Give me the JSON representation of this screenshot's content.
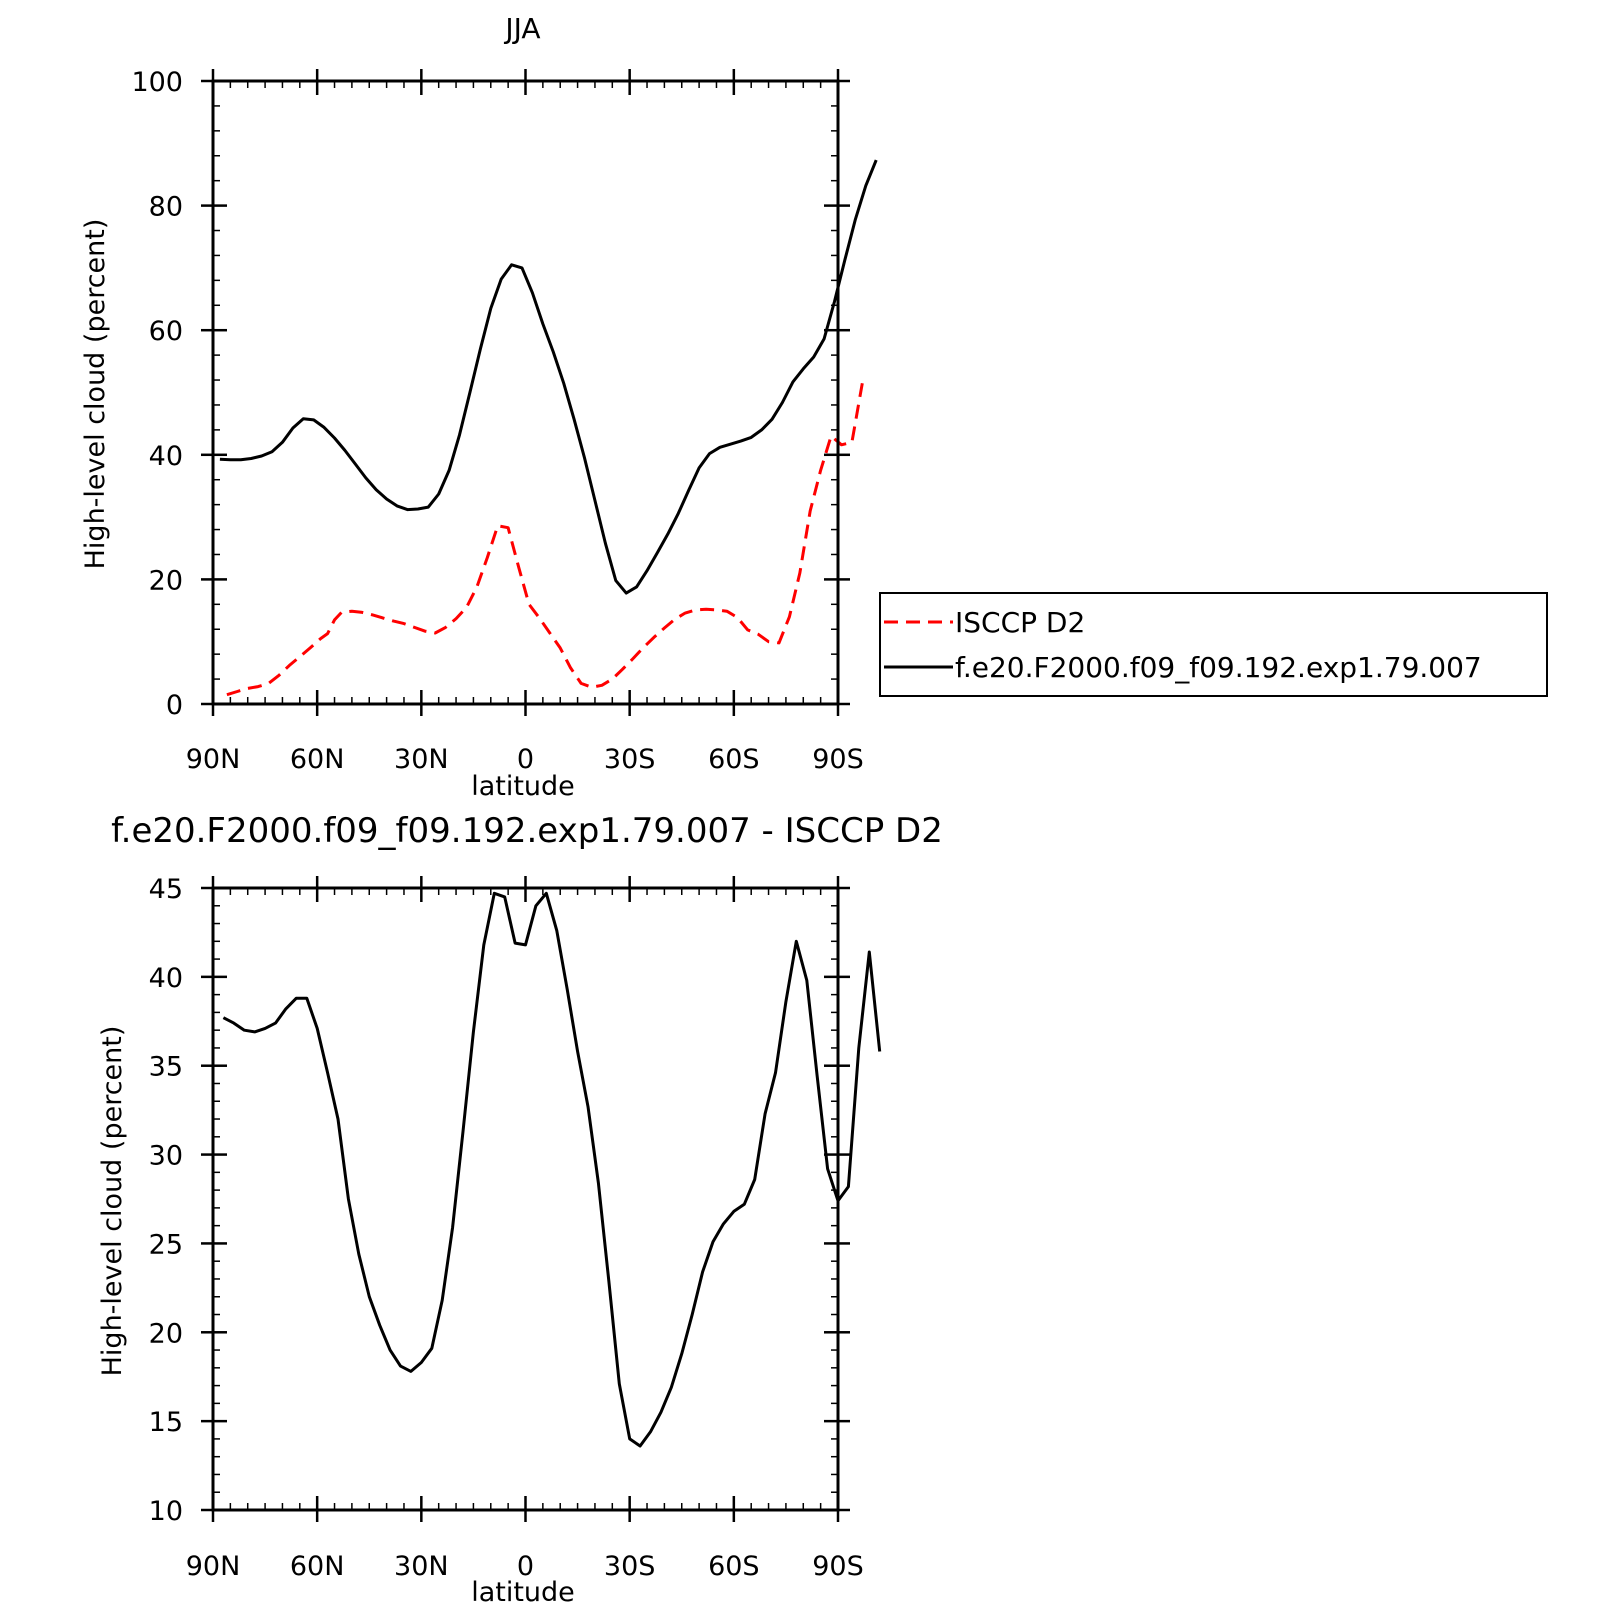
{
  "chart_data": [
    {
      "type": "line",
      "title": "JJA",
      "xlabel": "latitude",
      "ylabel": "High-level cloud (percent)",
      "xlim": [
        90,
        -90
      ],
      "ylim": [
        0,
        100
      ],
      "x_ticks": [
        90,
        60,
        30,
        0,
        -30,
        -60,
        -90
      ],
      "x_tick_labels": [
        "90N",
        "60N",
        "30N",
        "0",
        "30S",
        "60S",
        "90S"
      ],
      "y_ticks": [
        0,
        20,
        40,
        60,
        80,
        100
      ],
      "y_tick_labels": [
        "0",
        "20",
        "40",
        "60",
        "80",
        "100"
      ],
      "legend_placement": "right",
      "series": [
        {
          "name": "ISCCP D2",
          "color": "#ff0000",
          "style": "dashed",
          "points": [
            [
              86,
              1.5
            ],
            [
              83,
              2
            ],
            [
              80,
              2.5
            ],
            [
              77,
              2.8
            ],
            [
              74,
              3.3
            ],
            [
              71,
              4.6
            ],
            [
              68,
              6.2
            ],
            [
              65,
              7.6
            ],
            [
              62,
              9
            ],
            [
              59,
              10.5
            ],
            [
              57,
              11.3
            ],
            [
              55,
              13.5
            ],
            [
              53,
              14.7
            ],
            [
              50,
              14.9
            ],
            [
              47,
              14.7
            ],
            [
              44,
              14.3
            ],
            [
              41,
              13.8
            ],
            [
              38,
              13.3
            ],
            [
              35,
              12.9
            ],
            [
              32,
              12.3
            ],
            [
              29,
              11.7
            ],
            [
              26,
              11.4
            ],
            [
              23,
              12.3
            ],
            [
              20,
              13.7
            ],
            [
              17,
              15.5
            ],
            [
              14,
              18.8
            ],
            [
              11,
              23.5
            ],
            [
              8,
              28.6
            ],
            [
              5,
              28.3
            ],
            [
              2,
              22
            ],
            [
              -1,
              16
            ],
            [
              -4,
              13.8
            ],
            [
              -7,
              11.4
            ],
            [
              -10,
              9
            ],
            [
              -13,
              5.8
            ],
            [
              -16,
              3.3
            ],
            [
              -19,
              2.7
            ],
            [
              -22,
              3
            ],
            [
              -25,
              4
            ],
            [
              -28,
              5.6
            ],
            [
              -31,
              7.3
            ],
            [
              -34,
              9.1
            ],
            [
              -37,
              10.7
            ],
            [
              -40,
              12.2
            ],
            [
              -43,
              13.6
            ],
            [
              -46,
              14.6
            ],
            [
              -49,
              15.1
            ],
            [
              -52,
              15.2
            ],
            [
              -55,
              15.1
            ],
            [
              -58,
              14.9
            ],
            [
              -61,
              13.9
            ],
            [
              -64,
              11.9
            ],
            [
              -67,
              11.2
            ],
            [
              -70,
              10
            ],
            [
              -73,
              9.8
            ],
            [
              -76,
              14
            ],
            [
              -79,
              21
            ],
            [
              -82,
              31
            ],
            [
              -85,
              37.5
            ],
            [
              -88,
              43
            ],
            [
              -91,
              41.6
            ],
            [
              -94,
              42
            ],
            [
              -97,
              51.5
            ]
          ]
        },
        {
          "name": "f.e20.F2000.f09_f09.192.exp1.79.007",
          "color": "#000000",
          "style": "solid",
          "points": [
            [
              88,
              39.3
            ],
            [
              85,
              39.2
            ],
            [
              82,
              39.2
            ],
            [
              79,
              39.4
            ],
            [
              76,
              39.8
            ],
            [
              73,
              40.5
            ],
            [
              70,
              42
            ],
            [
              67,
              44.3
            ],
            [
              64,
              45.8
            ],
            [
              61,
              45.6
            ],
            [
              58,
              44.4
            ],
            [
              55,
              42.7
            ],
            [
              52,
              40.7
            ],
            [
              49,
              38.5
            ],
            [
              46,
              36.3
            ],
            [
              43,
              34.4
            ],
            [
              40,
              32.9
            ],
            [
              37,
              31.8
            ],
            [
              34,
              31.2
            ],
            [
              31,
              31.3
            ],
            [
              28,
              31.6
            ],
            [
              25,
              33.7
            ],
            [
              22,
              37.5
            ],
            [
              19,
              43.2
            ],
            [
              16,
              50
            ],
            [
              13,
              57
            ],
            [
              10,
              63.5
            ],
            [
              7,
              68.2
            ],
            [
              4,
              70.5
            ],
            [
              1,
              70
            ],
            [
              -2,
              66
            ],
            [
              -5,
              61
            ],
            [
              -8,
              56.5
            ],
            [
              -11,
              51.5
            ],
            [
              -14,
              45.7
            ],
            [
              -17,
              39.5
            ],
            [
              -20,
              32.7
            ],
            [
              -23,
              25.8
            ],
            [
              -26,
              19.8
            ],
            [
              -29,
              17.8
            ],
            [
              -32,
              18.8
            ],
            [
              -35,
              21.4
            ],
            [
              -38,
              24.3
            ],
            [
              -41,
              27.3
            ],
            [
              -44,
              30.6
            ],
            [
              -47,
              34.3
            ],
            [
              -50,
              37.9
            ],
            [
              -53,
              40.2
            ],
            [
              -56,
              41.2
            ],
            [
              -59,
              41.7
            ],
            [
              -62,
              42.2
            ],
            [
              -65,
              42.8
            ],
            [
              -68,
              44
            ],
            [
              -71,
              45.7
            ],
            [
              -74,
              48.4
            ],
            [
              -77,
              51.7
            ],
            [
              -80,
              53.8
            ],
            [
              -83,
              55.7
            ],
            [
              -86,
              58.6
            ],
            [
              -89,
              64.6
            ],
            [
              -92,
              71.3
            ],
            [
              -95,
              77.8
            ],
            [
              -98,
              83.2
            ],
            [
              -101,
              87.3
            ]
          ]
        }
      ]
    },
    {
      "type": "line",
      "title": "f.e20.F2000.f09_f09.192.exp1.79.007 - ISCCP D2",
      "xlabel": "latitude",
      "ylabel": "High-level cloud (percent)",
      "xlim": [
        90,
        -90
      ],
      "ylim": [
        10,
        45
      ],
      "x_ticks": [
        90,
        60,
        30,
        0,
        -30,
        -60,
        -90
      ],
      "x_tick_labels": [
        "90N",
        "60N",
        "30N",
        "0",
        "30S",
        "60S",
        "90S"
      ],
      "y_ticks": [
        10,
        15,
        20,
        25,
        30,
        35,
        40,
        45
      ],
      "y_tick_labels": [
        "10",
        "15",
        "20",
        "25",
        "30",
        "35",
        "40",
        "45"
      ],
      "series": [
        {
          "color": "#000000",
          "style": "solid",
          "points": [
            [
              87,
              37.7
            ],
            [
              84,
              37.4
            ],
            [
              81,
              37
            ],
            [
              78,
              36.9
            ],
            [
              75,
              37.1
            ],
            [
              72,
              37.4
            ],
            [
              69,
              38.2
            ],
            [
              66,
              38.8
            ],
            [
              63,
              38.8
            ],
            [
              60,
              37.1
            ],
            [
              57,
              34.6
            ],
            [
              54,
              32
            ],
            [
              51,
              27.5
            ],
            [
              48,
              24.4
            ],
            [
              45,
              22
            ],
            [
              42,
              20.4
            ],
            [
              39,
              19
            ],
            [
              36,
              18.1
            ],
            [
              33,
              17.8
            ],
            [
              30,
              18.3
            ],
            [
              27,
              19.1
            ],
            [
              24,
              21.8
            ],
            [
              21,
              25.9
            ],
            [
              18,
              31.3
            ],
            [
              15,
              36.9
            ],
            [
              12,
              41.8
            ],
            [
              9,
              44.7
            ],
            [
              6,
              44.5
            ],
            [
              3,
              41.9
            ],
            [
              0,
              41.8
            ],
            [
              -3,
              44
            ],
            [
              -6,
              44.7
            ],
            [
              -9,
              42.6
            ],
            [
              -12,
              39.3
            ],
            [
              -15,
              35.8
            ],
            [
              -18,
              32.7
            ],
            [
              -21,
              28.4
            ],
            [
              -24,
              22.9
            ],
            [
              -27,
              17.1
            ],
            [
              -30,
              14
            ],
            [
              -33,
              13.6
            ],
            [
              -36,
              14.4
            ],
            [
              -39,
              15.5
            ],
            [
              -42,
              16.9
            ],
            [
              -45,
              18.8
            ],
            [
              -48,
              21
            ],
            [
              -51,
              23.4
            ],
            [
              -54,
              25.1
            ],
            [
              -57,
              26.1
            ],
            [
              -60,
              26.8
            ],
            [
              -63,
              27.2
            ],
            [
              -66,
              28.6
            ],
            [
              -69,
              32.3
            ],
            [
              -72,
              34.6
            ],
            [
              -75,
              38.6
            ],
            [
              -78,
              42
            ],
            [
              -81,
              39.8
            ],
            [
              -84,
              34.4
            ],
            [
              -87,
              29.2
            ],
            [
              -90,
              27.4
            ],
            [
              -93,
              28.2
            ],
            [
              -96,
              36
            ],
            [
              -99,
              41.4
            ],
            [
              -102,
              35.8
            ]
          ]
        }
      ]
    }
  ],
  "legend": {
    "items": [
      {
        "label": "ISCCP D2",
        "color": "#ff0000",
        "style": "dashed"
      },
      {
        "label": "f.e20.F2000.f09_f09.192.exp1.79.007",
        "color": "#000000",
        "style": "solid"
      }
    ]
  }
}
